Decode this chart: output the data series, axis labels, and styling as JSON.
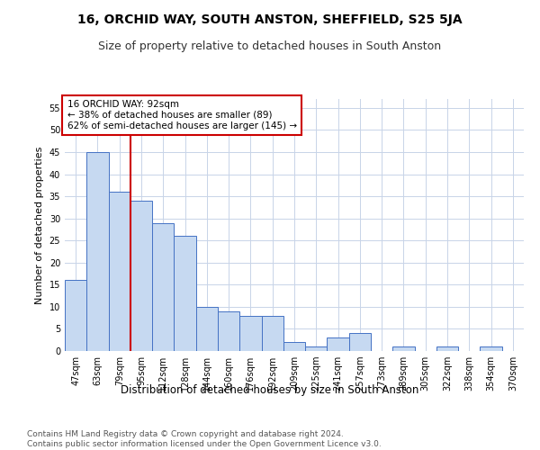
{
  "title": "16, ORCHID WAY, SOUTH ANSTON, SHEFFIELD, S25 5JA",
  "subtitle": "Size of property relative to detached houses in South Anston",
  "xlabel": "Distribution of detached houses by size in South Anston",
  "ylabel": "Number of detached properties",
  "categories": [
    "47sqm",
    "63sqm",
    "79sqm",
    "95sqm",
    "112sqm",
    "128sqm",
    "144sqm",
    "160sqm",
    "176sqm",
    "192sqm",
    "209sqm",
    "225sqm",
    "241sqm",
    "257sqm",
    "273sqm",
    "289sqm",
    "305sqm",
    "322sqm",
    "338sqm",
    "354sqm",
    "370sqm"
  ],
  "values": [
    16,
    45,
    36,
    34,
    29,
    26,
    10,
    9,
    8,
    8,
    2,
    1,
    3,
    4,
    0,
    1,
    0,
    1,
    0,
    1,
    0
  ],
  "bar_color": "#c6d9f1",
  "bar_edge_color": "#4472c4",
  "red_line_x": 2.5,
  "annotation_line1": "16 ORCHID WAY: 92sqm",
  "annotation_line2": "← 38% of detached houses are smaller (89)",
  "annotation_line3": "62% of semi-detached houses are larger (145) →",
  "annotation_box_color": "#ffffff",
  "annotation_box_edge": "#cc0000",
  "vline_color": "#cc0000",
  "ylim": [
    0,
    57
  ],
  "yticks": [
    0,
    5,
    10,
    15,
    20,
    25,
    30,
    35,
    40,
    45,
    50,
    55
  ],
  "footer1": "Contains HM Land Registry data © Crown copyright and database right 2024.",
  "footer2": "Contains public sector information licensed under the Open Government Licence v3.0.",
  "bg_color": "#ffffff",
  "grid_color": "#c8d4e8",
  "title_fontsize": 10,
  "subtitle_fontsize": 9,
  "xlabel_fontsize": 8.5,
  "ylabel_fontsize": 8,
  "tick_fontsize": 7,
  "footer_fontsize": 6.5,
  "annotation_fontsize": 7.5
}
